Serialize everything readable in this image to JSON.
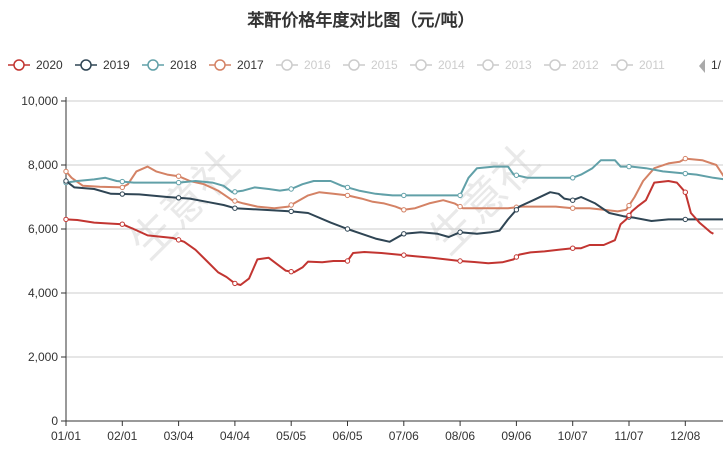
{
  "chart_data": {
    "type": "line",
    "title": "苯酐价格年度对比图（元/吨）",
    "xlabel": "",
    "ylabel": "",
    "ylim": [
      0,
      10000
    ],
    "y_ticks": [
      0,
      2000,
      4000,
      6000,
      8000,
      10000
    ],
    "y_tick_labels": [
      "0",
      "2,000",
      "4,000",
      "6,000",
      "8,000",
      "10,000"
    ],
    "x_ticks": [
      "01/01",
      "02/01",
      "03/04",
      "04/04",
      "05/05",
      "06/05",
      "07/06",
      "08/06",
      "09/06",
      "10/07",
      "11/07",
      "12/08"
    ],
    "grid": "horizontal",
    "legend_position": "top",
    "legend_page": "1/",
    "watermark": "生意社",
    "series": [
      {
        "name": "2020",
        "color": "#c23531",
        "visible": true,
        "points": [
          [
            0,
            6300
          ],
          [
            0.2,
            6280
          ],
          [
            0.5,
            6200
          ],
          [
            0.8,
            6170
          ],
          [
            1.0,
            6150
          ],
          [
            1.2,
            6000
          ],
          [
            1.45,
            5800
          ],
          [
            1.9,
            5720
          ],
          [
            2.1,
            5600
          ],
          [
            2.3,
            5350
          ],
          [
            2.5,
            5000
          ],
          [
            2.7,
            4650
          ],
          [
            2.85,
            4500
          ],
          [
            3.0,
            4300
          ],
          [
            3.1,
            4250
          ],
          [
            3.25,
            4450
          ],
          [
            3.4,
            5050
          ],
          [
            3.6,
            5100
          ],
          [
            3.75,
            4900
          ],
          [
            3.9,
            4700
          ],
          [
            4.05,
            4650
          ],
          [
            4.2,
            4800
          ],
          [
            4.3,
            4980
          ],
          [
            4.55,
            4960
          ],
          [
            4.75,
            5000
          ],
          [
            5.0,
            5000
          ],
          [
            5.1,
            5250
          ],
          [
            5.3,
            5280
          ],
          [
            5.6,
            5250
          ],
          [
            5.9,
            5200
          ],
          [
            6.2,
            5150
          ],
          [
            6.5,
            5100
          ],
          [
            6.75,
            5050
          ],
          [
            7.0,
            5000
          ],
          [
            7.25,
            4970
          ],
          [
            7.5,
            4930
          ],
          [
            7.75,
            4960
          ],
          [
            7.95,
            5050
          ],
          [
            8.05,
            5200
          ],
          [
            8.25,
            5270
          ],
          [
            8.5,
            5300
          ],
          [
            8.75,
            5350
          ],
          [
            9.0,
            5400
          ],
          [
            9.15,
            5400
          ],
          [
            9.3,
            5500
          ],
          [
            9.55,
            5500
          ],
          [
            9.75,
            5650
          ],
          [
            9.85,
            6150
          ],
          [
            9.95,
            6300
          ],
          [
            10.05,
            6550
          ],
          [
            10.15,
            6700
          ],
          [
            10.3,
            6900
          ],
          [
            10.45,
            7450
          ],
          [
            10.7,
            7500
          ],
          [
            10.85,
            7450
          ],
          [
            11.0,
            7150
          ],
          [
            11.1,
            6500
          ],
          [
            11.25,
            6200
          ],
          [
            11.35,
            6050
          ],
          [
            11.45,
            5900
          ],
          [
            11.5,
            5850
          ]
        ],
        "markers": [
          0,
          1.0,
          2.0,
          3.0,
          4.0,
          5.0,
          6.0,
          7.0,
          8.0,
          9.0,
          10.0,
          11.0
        ]
      },
      {
        "name": "2019",
        "color": "#2f4554",
        "visible": true,
        "points": [
          [
            0,
            7500
          ],
          [
            0.15,
            7300
          ],
          [
            0.5,
            7250
          ],
          [
            0.8,
            7100
          ],
          [
            1.3,
            7080
          ],
          [
            1.8,
            7000
          ],
          [
            2.2,
            6950
          ],
          [
            2.5,
            6850
          ],
          [
            2.8,
            6750
          ],
          [
            3.0,
            6650
          ],
          [
            3.5,
            6600
          ],
          [
            4.0,
            6550
          ],
          [
            4.3,
            6500
          ],
          [
            4.7,
            6200
          ],
          [
            5.0,
            6000
          ],
          [
            5.25,
            5850
          ],
          [
            5.5,
            5700
          ],
          [
            5.75,
            5600
          ],
          [
            6.0,
            5850
          ],
          [
            6.3,
            5900
          ],
          [
            6.6,
            5850
          ],
          [
            6.8,
            5750
          ],
          [
            7.0,
            5900
          ],
          [
            7.3,
            5850
          ],
          [
            7.55,
            5900
          ],
          [
            7.7,
            5950
          ],
          [
            7.85,
            6300
          ],
          [
            8.05,
            6700
          ],
          [
            8.3,
            6900
          ],
          [
            8.6,
            7150
          ],
          [
            8.75,
            7100
          ],
          [
            8.85,
            6950
          ],
          [
            9.0,
            6900
          ],
          [
            9.15,
            7000
          ],
          [
            9.4,
            6800
          ],
          [
            9.65,
            6500
          ],
          [
            9.9,
            6400
          ],
          [
            10.1,
            6350
          ],
          [
            10.4,
            6250
          ],
          [
            10.7,
            6300
          ],
          [
            11.0,
            6300
          ],
          [
            11.3,
            6300
          ],
          [
            11.6,
            6300
          ],
          [
            11.85,
            6300
          ]
        ],
        "markers": [
          0,
          1.0,
          2.0,
          3.0,
          4.0,
          5.0,
          6.0,
          7.0,
          8.0,
          9.0,
          10.0,
          11.0
        ]
      },
      {
        "name": "2018",
        "color": "#61a0a8",
        "visible": true,
        "points": [
          [
            0,
            7450
          ],
          [
            0.2,
            7500
          ],
          [
            0.5,
            7550
          ],
          [
            0.7,
            7600
          ],
          [
            0.9,
            7500
          ],
          [
            1.2,
            7450
          ],
          [
            1.6,
            7450
          ],
          [
            2.0,
            7450
          ],
          [
            2.3,
            7500
          ],
          [
            2.6,
            7450
          ],
          [
            2.8,
            7350
          ],
          [
            2.95,
            7150
          ],
          [
            3.15,
            7200
          ],
          [
            3.35,
            7300
          ],
          [
            3.6,
            7250
          ],
          [
            3.8,
            7200
          ],
          [
            4.0,
            7250
          ],
          [
            4.2,
            7400
          ],
          [
            4.4,
            7500
          ],
          [
            4.7,
            7500
          ],
          [
            4.9,
            7350
          ],
          [
            5.2,
            7200
          ],
          [
            5.5,
            7100
          ],
          [
            5.8,
            7050
          ],
          [
            6.0,
            7050
          ],
          [
            6.3,
            7050
          ],
          [
            6.7,
            7050
          ],
          [
            7.0,
            7050
          ],
          [
            7.15,
            7600
          ],
          [
            7.3,
            7900
          ],
          [
            7.6,
            7950
          ],
          [
            7.85,
            7950
          ],
          [
            7.95,
            7700
          ],
          [
            8.2,
            7600
          ],
          [
            8.5,
            7600
          ],
          [
            8.75,
            7600
          ],
          [
            9.0,
            7600
          ],
          [
            9.15,
            7700
          ],
          [
            9.35,
            7900
          ],
          [
            9.5,
            8150
          ],
          [
            9.75,
            8150
          ],
          [
            9.85,
            7950
          ],
          [
            10.05,
            7950
          ],
          [
            10.3,
            7900
          ],
          [
            10.6,
            7800
          ],
          [
            10.9,
            7750
          ],
          [
            11.2,
            7700
          ],
          [
            11.5,
            7600
          ],
          [
            11.7,
            7550
          ],
          [
            11.85,
            7500
          ]
        ],
        "markers": [
          0,
          1.0,
          2.0,
          3.0,
          4.0,
          5.0,
          6.0,
          7.0,
          8.0,
          9.0,
          10.0,
          11.0
        ]
      },
      {
        "name": "2017",
        "color": "#d48265",
        "visible": true,
        "points": [
          [
            0,
            7800
          ],
          [
            0.1,
            7600
          ],
          [
            0.3,
            7350
          ],
          [
            0.6,
            7320
          ],
          [
            1.0,
            7300
          ],
          [
            1.1,
            7400
          ],
          [
            1.25,
            7800
          ],
          [
            1.45,
            7950
          ],
          [
            1.6,
            7800
          ],
          [
            1.8,
            7700
          ],
          [
            2.0,
            7650
          ],
          [
            2.2,
            7500
          ],
          [
            2.45,
            7400
          ],
          [
            2.7,
            7200
          ],
          [
            2.95,
            6900
          ],
          [
            3.15,
            6800
          ],
          [
            3.4,
            6700
          ],
          [
            3.7,
            6650
          ],
          [
            3.95,
            6700
          ],
          [
            4.1,
            6850
          ],
          [
            4.3,
            7050
          ],
          [
            4.5,
            7150
          ],
          [
            4.75,
            7100
          ],
          [
            5.0,
            7050
          ],
          [
            5.25,
            6950
          ],
          [
            5.45,
            6850
          ],
          [
            5.65,
            6800
          ],
          [
            5.85,
            6700
          ],
          [
            6.0,
            6600
          ],
          [
            6.2,
            6650
          ],
          [
            6.45,
            6800
          ],
          [
            6.7,
            6900
          ],
          [
            6.9,
            6800
          ],
          [
            7.05,
            6650
          ],
          [
            7.3,
            6650
          ],
          [
            7.6,
            6650
          ],
          [
            7.85,
            6650
          ],
          [
            8.1,
            6700
          ],
          [
            8.4,
            6700
          ],
          [
            8.7,
            6700
          ],
          [
            9.0,
            6650
          ],
          [
            9.3,
            6650
          ],
          [
            9.55,
            6600
          ],
          [
            9.8,
            6550
          ],
          [
            9.95,
            6600
          ],
          [
            10.1,
            7000
          ],
          [
            10.25,
            7500
          ],
          [
            10.45,
            7900
          ],
          [
            10.7,
            8050
          ],
          [
            10.9,
            8100
          ],
          [
            11.0,
            8200
          ],
          [
            11.3,
            8150
          ],
          [
            11.55,
            8000
          ],
          [
            11.7,
            7600
          ],
          [
            11.85,
            7500
          ]
        ],
        "markers": [
          0,
          1.0,
          2.0,
          3.0,
          4.0,
          5.0,
          6.0,
          7.0,
          8.0,
          9.0,
          10.0,
          11.0
        ]
      },
      {
        "name": "2016",
        "color": "#cccccc",
        "visible": false
      },
      {
        "name": "2015",
        "color": "#cccccc",
        "visible": false
      },
      {
        "name": "2014",
        "color": "#cccccc",
        "visible": false
      },
      {
        "name": "2013",
        "color": "#cccccc",
        "visible": false
      },
      {
        "name": "2012",
        "color": "#cccccc",
        "visible": false
      },
      {
        "name": "2011",
        "color": "#cccccc",
        "visible": false
      }
    ]
  }
}
